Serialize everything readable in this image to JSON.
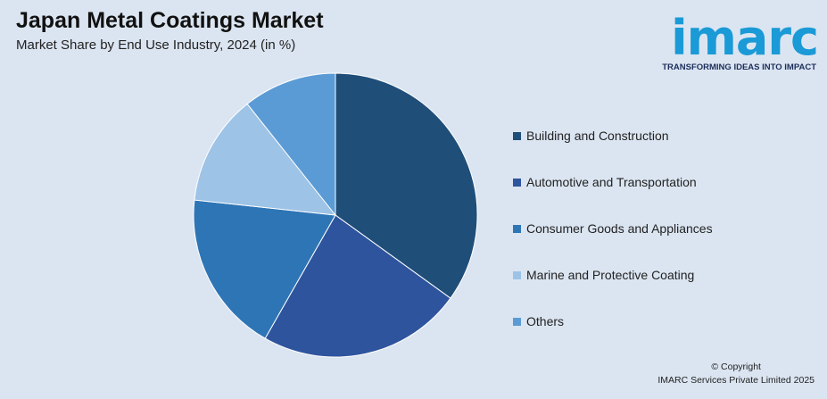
{
  "header": {
    "title": "Japan Metal Coatings Market",
    "subtitle": "Market Share by End Use Industry, 2024 (in %)"
  },
  "logo": {
    "word": "imarc",
    "tagline": "TRANSFORMING IDEAS INTO IMPACT",
    "color": "#1a9ad6"
  },
  "chart_data": {
    "type": "pie",
    "title": "Japan Metal Coatings Market",
    "subtitle": "Market Share by End Use Industry, 2024 (in %)",
    "legend_position": "right",
    "start_angle": "12 o'clock, clockwise",
    "slices": [
      {
        "label": "Building and Construction",
        "value": 36,
        "color": "#1f4e79"
      },
      {
        "label": "Automotive and Transportation",
        "value": 24,
        "color": "#2e549e"
      },
      {
        "label": "Consumer Goods and Appliances",
        "value": 19,
        "color": "#2e75b6"
      },
      {
        "label": "Marine and Protective Coating",
        "value": 13,
        "color": "#9dc3e6"
      },
      {
        "label": "Others",
        "value": 11,
        "color": "#5b9bd5"
      }
    ]
  },
  "footer": {
    "copyright_line1": "© Copyright",
    "copyright_line2": "IMARC Services Private Limited 2025"
  }
}
